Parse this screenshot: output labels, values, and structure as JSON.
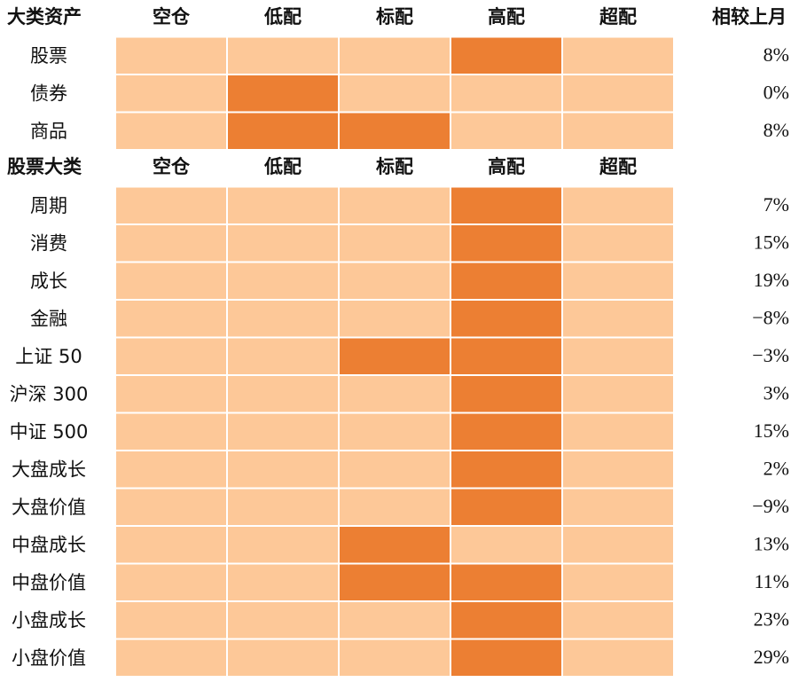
{
  "colors": {
    "light": "#fdc898",
    "highlight": "#ec7f33",
    "grid": "#ffffff",
    "text": "#111111"
  },
  "chart_data": {
    "type": "heatmap",
    "columns": [
      "空仓",
      "低配",
      "标配",
      "高配",
      "超配"
    ],
    "sections": [
      {
        "header": "大类资产",
        "change_header": "相较上月",
        "rows": [
          {
            "label": "股票",
            "highlight": [
              3
            ],
            "change": "8%"
          },
          {
            "label": "债券",
            "highlight": [
              1
            ],
            "change": "0%"
          },
          {
            "label": "商品",
            "highlight": [
              1,
              2
            ],
            "change": "8%"
          }
        ]
      },
      {
        "header": "股票大类",
        "change_header": "",
        "rows": [
          {
            "label": "周期",
            "highlight": [
              3
            ],
            "change": "7%"
          },
          {
            "label": "消费",
            "highlight": [
              3
            ],
            "change": "15%"
          },
          {
            "label": "成长",
            "highlight": [
              3
            ],
            "change": "19%"
          },
          {
            "label": "金融",
            "highlight": [
              3
            ],
            "change": "−8%"
          },
          {
            "label": "上证 50",
            "highlight": [
              2,
              3
            ],
            "change": "−3%"
          },
          {
            "label": "沪深 300",
            "highlight": [
              3
            ],
            "change": "3%"
          },
          {
            "label": "中证 500",
            "highlight": [
              3
            ],
            "change": "15%"
          },
          {
            "label": "大盘成长",
            "highlight": [
              3
            ],
            "change": "2%"
          },
          {
            "label": "大盘价值",
            "highlight": [
              3
            ],
            "change": "−9%"
          },
          {
            "label": "中盘成长",
            "highlight": [
              2
            ],
            "change": "13%"
          },
          {
            "label": "中盘价值",
            "highlight": [
              2,
              3
            ],
            "change": "11%"
          },
          {
            "label": "小盘成长",
            "highlight": [
              3
            ],
            "change": "23%"
          },
          {
            "label": "小盘价值",
            "highlight": [
              3
            ],
            "change": "29%"
          }
        ]
      }
    ]
  }
}
